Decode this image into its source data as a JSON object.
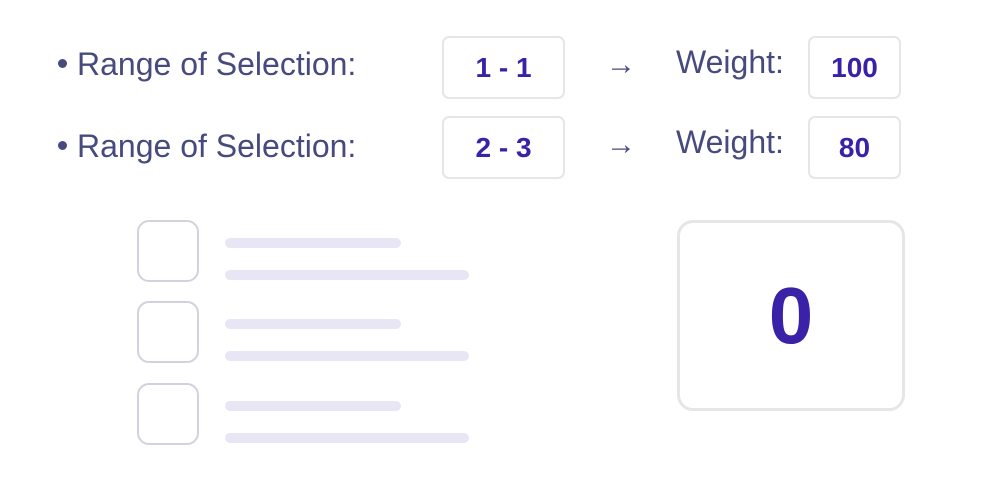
{
  "rules": [
    {
      "label": "Range of Selection:",
      "range": "1 - 1",
      "arrow": "→",
      "weight_label": "Weight:",
      "weight": "100"
    },
    {
      "label": "Range of Selection:",
      "range": "2 - 3",
      "arrow": "→",
      "weight_label": "Weight:",
      "weight": "80"
    }
  ],
  "options_count": 3,
  "score": "0",
  "colors": {
    "label": "#474a7e",
    "value": "#3a22a8",
    "border": "#e6e6e9",
    "placeholder_bar": "#e8e6f4"
  }
}
